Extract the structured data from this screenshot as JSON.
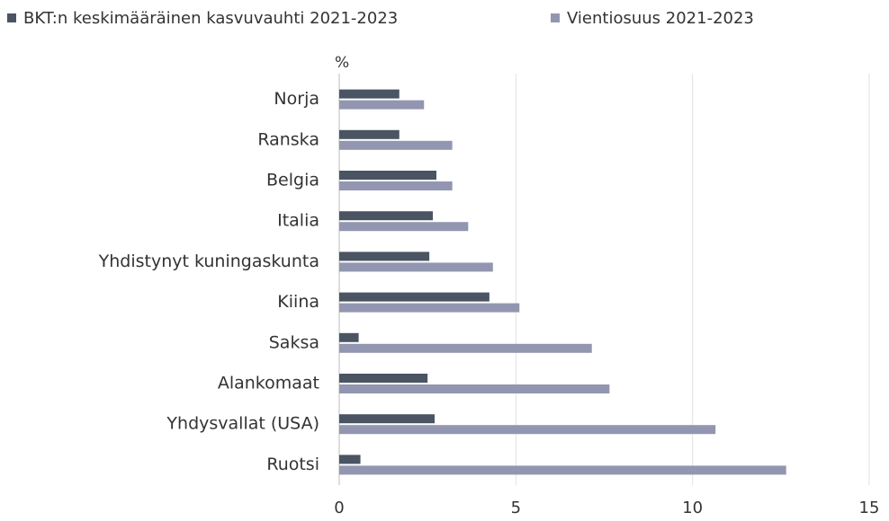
{
  "chart_data": {
    "type": "hbar",
    "y_unit_label": "%",
    "categories": [
      "Norja",
      "Ranska",
      "Belgia",
      "Italia",
      "Yhdistynyt kuningaskunta",
      "Kiina",
      "Saksa",
      "Alankomaat",
      "Yhdysvallat (USA)",
      "Ruotsi"
    ],
    "series": [
      {
        "name": "BKT:n keskimääräinen kasvuvauhti 2021-2023",
        "color": "#4a5462",
        "values": [
          1.7,
          1.7,
          2.75,
          2.65,
          2.55,
          4.25,
          0.55,
          2.5,
          2.7,
          0.6
        ]
      },
      {
        "name": "Vientiosuus 2021-2023",
        "color": "#9396b0",
        "values": [
          2.4,
          3.2,
          3.2,
          3.65,
          4.35,
          5.1,
          7.15,
          7.65,
          10.65,
          12.65
        ]
      }
    ],
    "xlim": [
      0,
      15
    ],
    "xticks": [
      0,
      5,
      10,
      15
    ],
    "grid": true,
    "legend": "top"
  }
}
